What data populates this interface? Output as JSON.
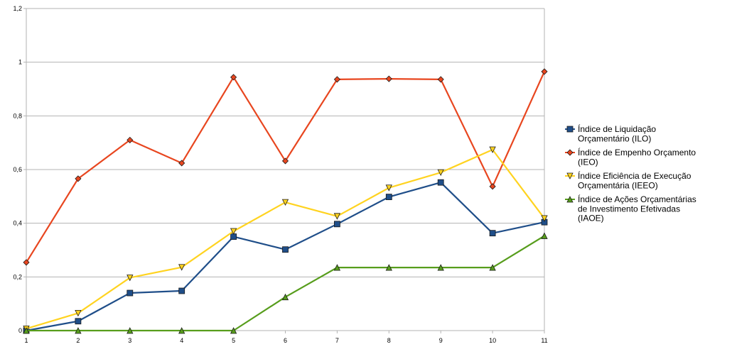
{
  "chart_data": {
    "type": "line",
    "title": "",
    "xlabel": "",
    "ylabel": "",
    "x": [
      "1",
      "2",
      "3",
      "4",
      "5",
      "6",
      "7",
      "8",
      "9",
      "10",
      "11"
    ],
    "y_ticks": [
      "0",
      "0,2",
      "0,4",
      "0,6",
      "0,8",
      "1",
      "1,2"
    ],
    "ylim": [
      0,
      1.2
    ],
    "grid": true,
    "legend_position": "right",
    "series": [
      {
        "name_lines": [
          "Índice de Liquidação",
          "Orçamentário (ILO)"
        ],
        "color": "#1f4e89",
        "marker": "square",
        "values": [
          0.0,
          0.035,
          0.14,
          0.148,
          0.35,
          0.302,
          0.397,
          0.498,
          0.552,
          0.363,
          0.404
        ]
      },
      {
        "name_lines": [
          "Índice de Empenho Orçamento",
          "(IEO)"
        ],
        "color": "#e8461f",
        "marker": "diamond",
        "values": [
          0.254,
          0.566,
          0.71,
          0.624,
          0.944,
          0.632,
          0.936,
          0.938,
          0.936,
          0.537,
          0.965
        ]
      },
      {
        "name_lines": [
          "Índice Eficiência de Execução",
          "Orçamentária (IEEO)"
        ],
        "color": "#ffd320",
        "marker": "triangle-down",
        "values": [
          0.007,
          0.065,
          0.197,
          0.236,
          0.37,
          0.478,
          0.426,
          0.532,
          0.589,
          0.674,
          0.418
        ]
      },
      {
        "name_lines": [
          "Índice de Ações Orçamentárias",
          "de Investimento Efetivadas",
          "(IAOE)"
        ],
        "color": "#579d1c",
        "marker": "triangle-up",
        "values": [
          0.0,
          0.0,
          0.0,
          0.0,
          0.0,
          0.125,
          0.235,
          0.235,
          0.235,
          0.235,
          0.353
        ]
      }
    ]
  }
}
